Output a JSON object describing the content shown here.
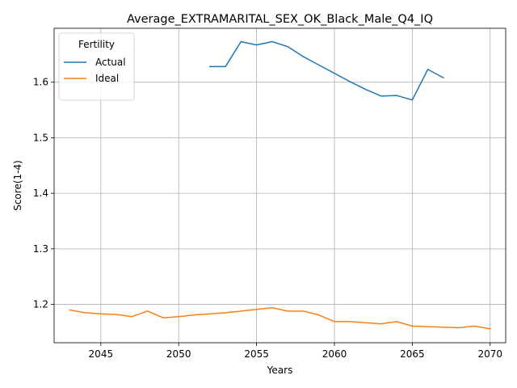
{
  "chart_data": {
    "type": "line",
    "title": "Average_EXTRAMARITAL_SEX_OK_Black_Male_Q4_IQ",
    "xlabel": "Years",
    "ylabel": "Score(1-4)",
    "xlim": [
      2042,
      2071
    ],
    "ylim": [
      1.131,
      1.697
    ],
    "xticks": [
      2045,
      2050,
      2055,
      2060,
      2065,
      2070
    ],
    "yticks": [
      1.2,
      1.3,
      1.4,
      1.5,
      1.6
    ],
    "xtick_labels": [
      "2045",
      "2050",
      "2055",
      "2060",
      "2065",
      "2070"
    ],
    "ytick_labels": [
      "1.2",
      "1.3",
      "1.4",
      "1.5",
      "1.6"
    ],
    "grid": true,
    "legend": {
      "title": "Fertility",
      "placement": "upper left"
    },
    "series": [
      {
        "name": "Actual",
        "color": "#1f77b4",
        "x": [
          2052,
          2053,
          2054,
          2055,
          2056,
          2057,
          2058,
          2059,
          2060,
          2061,
          2062,
          2063,
          2064,
          2065,
          2066,
          2067
        ],
        "y": [
          1.628,
          1.628,
          1.673,
          1.667,
          1.673,
          1.664,
          1.646,
          1.631,
          1.616,
          1.601,
          1.587,
          1.575,
          1.576,
          1.568,
          1.623,
          1.608
        ]
      },
      {
        "name": "Ideal",
        "color": "#ff7f0e",
        "x": [
          2043,
          2044,
          2045,
          2046,
          2047,
          2048,
          2049,
          2050,
          2051,
          2052,
          2053,
          2054,
          2055,
          2056,
          2057,
          2058,
          2059,
          2060,
          2061,
          2062,
          2063,
          2064,
          2065,
          2066,
          2067,
          2068,
          2069,
          2070
        ],
        "y": [
          1.19,
          1.185,
          1.183,
          1.182,
          1.178,
          1.188,
          1.176,
          1.178,
          1.181,
          1.183,
          1.185,
          1.188,
          1.191,
          1.194,
          1.188,
          1.188,
          1.181,
          1.169,
          1.169,
          1.167,
          1.165,
          1.169,
          1.161,
          1.16,
          1.159,
          1.158,
          1.161,
          1.156
        ]
      }
    ]
  }
}
